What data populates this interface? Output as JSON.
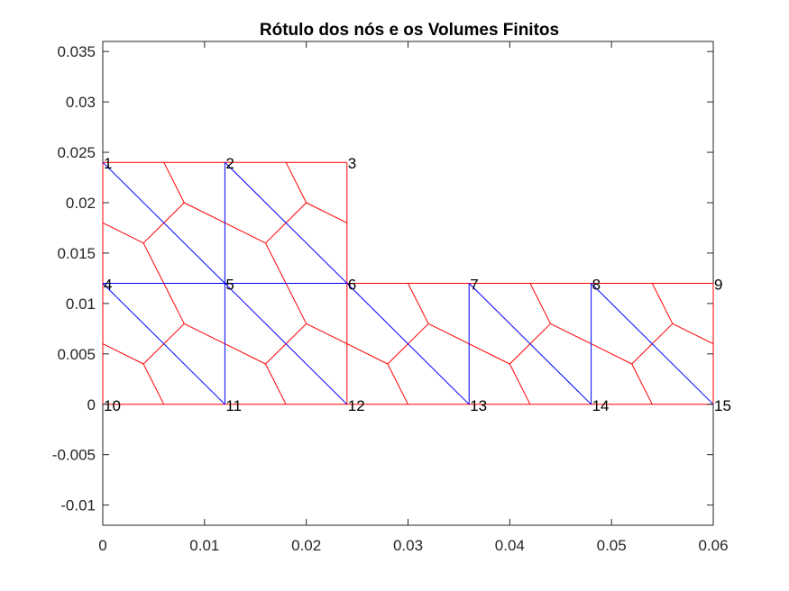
{
  "chart_data": {
    "type": "scatter",
    "title": "Rótulo dos nós e os Volumes Finitos",
    "xlabel": "",
    "ylabel": "",
    "xlim": [
      0,
      0.06
    ],
    "ylim": [
      -0.012,
      0.036
    ],
    "xticks": [
      {
        "value": 0,
        "label": "0"
      },
      {
        "value": 0.01,
        "label": "0.01"
      },
      {
        "value": 0.02,
        "label": "0.02"
      },
      {
        "value": 0.03,
        "label": "0.03"
      },
      {
        "value": 0.04,
        "label": "0.04"
      },
      {
        "value": 0.05,
        "label": "0.05"
      },
      {
        "value": 0.06,
        "label": "0.06"
      }
    ],
    "yticks": [
      {
        "value": -0.01,
        "label": "-0.01"
      },
      {
        "value": -0.005,
        "label": "-0.005"
      },
      {
        "value": 0,
        "label": "0"
      },
      {
        "value": 0.005,
        "label": "0.005"
      },
      {
        "value": 0.01,
        "label": "0.01"
      },
      {
        "value": 0.015,
        "label": "0.015"
      },
      {
        "value": 0.02,
        "label": "0.02"
      },
      {
        "value": 0.025,
        "label": "0.025"
      },
      {
        "value": 0.03,
        "label": "0.03"
      },
      {
        "value": 0.035,
        "label": "0.035"
      }
    ],
    "grid": false,
    "colors": {
      "mesh": "#0000ff",
      "volumes": "#ff0000",
      "axes": "#262626",
      "text": "#000000"
    },
    "nodes": [
      {
        "label": "1",
        "x": 0,
        "y": 0.024
      },
      {
        "label": "2",
        "x": 0.012,
        "y": 0.024
      },
      {
        "label": "3",
        "x": 0.024,
        "y": 0.024
      },
      {
        "label": "4",
        "x": 0,
        "y": 0.012
      },
      {
        "label": "5",
        "x": 0.012,
        "y": 0.012
      },
      {
        "label": "6",
        "x": 0.024,
        "y": 0.012
      },
      {
        "label": "7",
        "x": 0.036,
        "y": 0.012
      },
      {
        "label": "8",
        "x": 0.048,
        "y": 0.012
      },
      {
        "label": "9",
        "x": 0.06,
        "y": 0.012
      },
      {
        "label": "10",
        "x": 0,
        "y": 0
      },
      {
        "label": "11",
        "x": 0.012,
        "y": 0
      },
      {
        "label": "12",
        "x": 0.024,
        "y": 0
      },
      {
        "label": "13",
        "x": 0.036,
        "y": 0
      },
      {
        "label": "14",
        "x": 0.048,
        "y": 0
      },
      {
        "label": "15",
        "x": 0.06,
        "y": 0
      }
    ],
    "series": [
      {
        "kind": "mesh",
        "color": "#0000ff",
        "segments": [
          [
            [
              0,
              0.024
            ],
            [
              0.012,
              0.012
            ]
          ],
          [
            [
              0.012,
              0.024
            ],
            [
              0.024,
              0.012
            ]
          ],
          [
            [
              0.012,
              0.024
            ],
            [
              0.012,
              0
            ]
          ],
          [
            [
              0,
              0.012
            ],
            [
              0.024,
              0.012
            ]
          ],
          [
            [
              0,
              0.012
            ],
            [
              0.012,
              0
            ]
          ],
          [
            [
              0.012,
              0.012
            ],
            [
              0.024,
              0
            ]
          ],
          [
            [
              0.024,
              0.012
            ],
            [
              0.036,
              0
            ]
          ],
          [
            [
              0.036,
              0.012
            ],
            [
              0.048,
              0
            ]
          ],
          [
            [
              0.048,
              0.012
            ],
            [
              0.06,
              0
            ]
          ],
          [
            [
              0.036,
              0.012
            ],
            [
              0.036,
              0
            ]
          ],
          [
            [
              0.048,
              0.012
            ],
            [
              0.048,
              0
            ]
          ]
        ]
      },
      {
        "kind": "volumes",
        "color": "#ff0000",
        "segments": [
          [
            [
              0,
              0.024
            ],
            [
              0.024,
              0.024
            ]
          ],
          [
            [
              0.024,
              0.024
            ],
            [
              0.024,
              0
            ]
          ],
          [
            [
              0.024,
              0.012
            ],
            [
              0.06,
              0.012
            ]
          ],
          [
            [
              0.06,
              0.012
            ],
            [
              0.06,
              0
            ]
          ],
          [
            [
              0,
              0
            ],
            [
              0.06,
              0
            ]
          ],
          [
            [
              0,
              0
            ],
            [
              0,
              0.024
            ]
          ],
          [
            [
              0.006,
              0.024
            ],
            [
              0.008,
              0.02
            ]
          ],
          [
            [
              0.018,
              0.024
            ],
            [
              0.02,
              0.02
            ]
          ],
          [
            [
              0.008,
              0.02
            ],
            [
              0.016,
              0.016
            ]
          ],
          [
            [
              0.008,
              0.02
            ],
            [
              0.004,
              0.016
            ]
          ],
          [
            [
              0.02,
              0.02
            ],
            [
              0.024,
              0.018
            ]
          ],
          [
            [
              0.02,
              0.02
            ],
            [
              0.016,
              0.016
            ]
          ],
          [
            [
              0.004,
              0.016
            ],
            [
              0,
              0.018
            ]
          ],
          [
            [
              0.004,
              0.016
            ],
            [
              0.006,
              0.012
            ]
          ],
          [
            [
              0.016,
              0.016
            ],
            [
              0.018,
              0.012
            ]
          ],
          [
            [
              0.006,
              0.012
            ],
            [
              0.008,
              0.008
            ]
          ],
          [
            [
              0.018,
              0.012
            ],
            [
              0.02,
              0.008
            ]
          ],
          [
            [
              0.03,
              0.012
            ],
            [
              0.032,
              0.008
            ]
          ],
          [
            [
              0.042,
              0.012
            ],
            [
              0.044,
              0.008
            ]
          ],
          [
            [
              0.054,
              0.012
            ],
            [
              0.056,
              0.008
            ]
          ],
          [
            [
              0.008,
              0.008
            ],
            [
              0.016,
              0.004
            ]
          ],
          [
            [
              0.008,
              0.008
            ],
            [
              0.004,
              0.004
            ]
          ],
          [
            [
              0.02,
              0.008
            ],
            [
              0.024,
              0.006
            ]
          ],
          [
            [
              0.02,
              0.008
            ],
            [
              0.016,
              0.004
            ]
          ],
          [
            [
              0.032,
              0.008
            ],
            [
              0.04,
              0.004
            ]
          ],
          [
            [
              0.032,
              0.008
            ],
            [
              0.028,
              0.004
            ]
          ],
          [
            [
              0.044,
              0.008
            ],
            [
              0.048,
              0.006
            ]
          ],
          [
            [
              0.044,
              0.008
            ],
            [
              0.04,
              0.004
            ]
          ],
          [
            [
              0.056,
              0.008
            ],
            [
              0.06,
              0.006
            ]
          ],
          [
            [
              0.056,
              0.008
            ],
            [
              0.052,
              0.004
            ]
          ],
          [
            [
              0.004,
              0.004
            ],
            [
              0,
              0.006
            ]
          ],
          [
            [
              0.004,
              0.004
            ],
            [
              0.006,
              0
            ]
          ],
          [
            [
              0.016,
              0.004
            ],
            [
              0.018,
              0
            ]
          ],
          [
            [
              0.028,
              0.004
            ],
            [
              0.024,
              0.006
            ]
          ],
          [
            [
              0.028,
              0.004
            ],
            [
              0.03,
              0
            ]
          ],
          [
            [
              0.04,
              0.004
            ],
            [
              0.042,
              0
            ]
          ],
          [
            [
              0.052,
              0.004
            ],
            [
              0.048,
              0.006
            ]
          ],
          [
            [
              0.052,
              0.004
            ],
            [
              0.054,
              0
            ]
          ]
        ]
      }
    ]
  }
}
